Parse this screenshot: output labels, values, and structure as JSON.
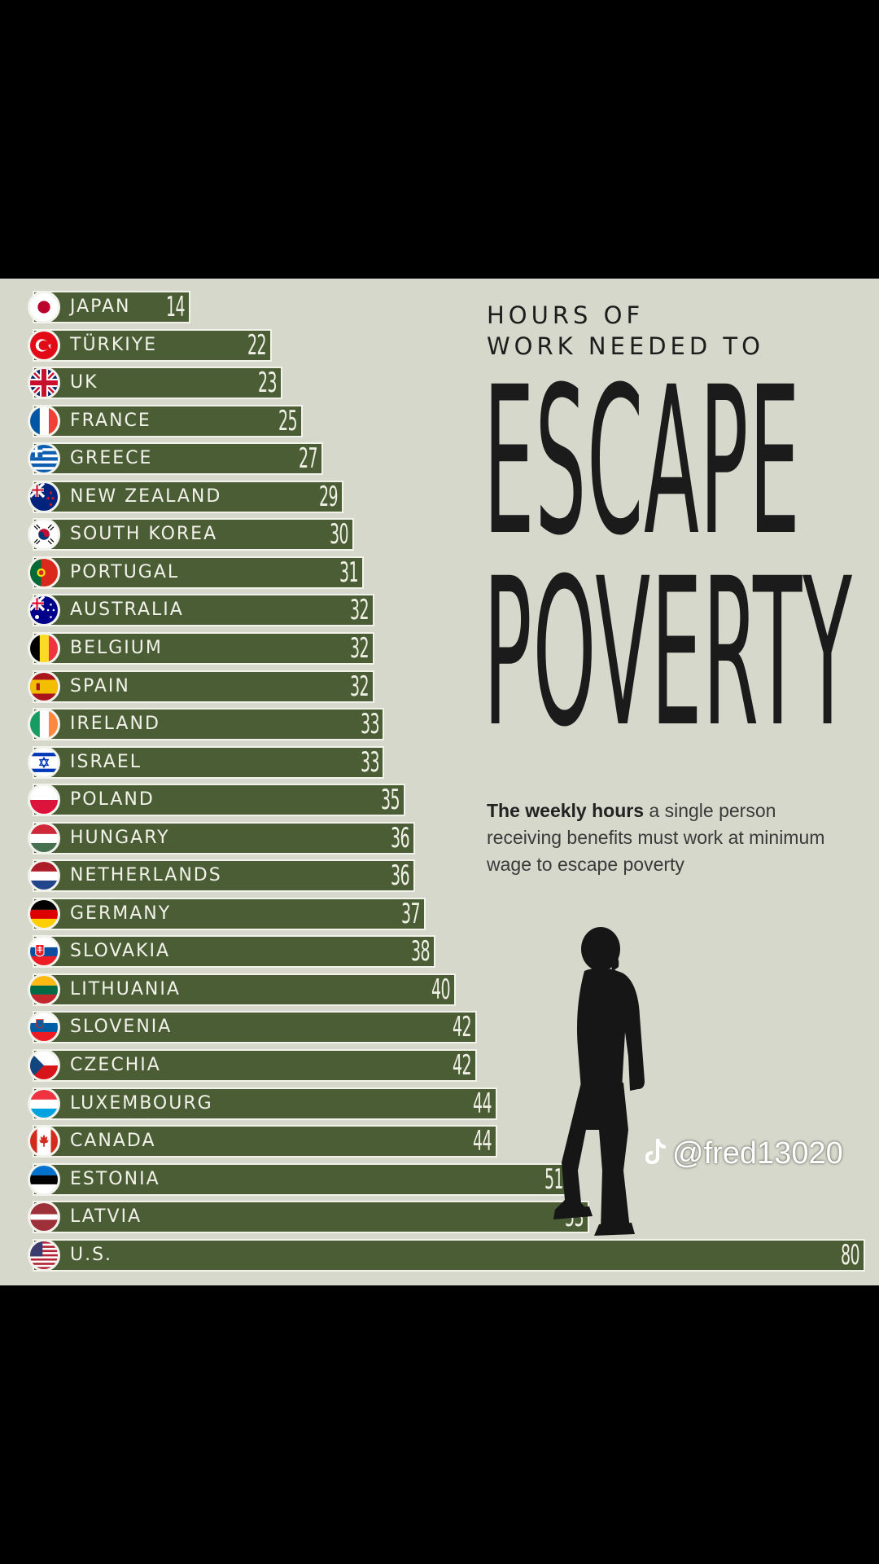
{
  "chart_data": {
    "type": "bar",
    "orientation": "horizontal",
    "title": "HOURS OF WORK NEEDED TO ESCAPE POVERTY",
    "subtitle_bold": "The weekly hours",
    "subtitle_rest": " a single person receiving benefits must work at minimum wage to escape poverty",
    "categories": [
      "JAPAN",
      "TÜRKIYE",
      "UK",
      "FRANCE",
      "GREECE",
      "NEW ZEALAND",
      "SOUTH KOREA",
      "PORTUGAL",
      "AUSTRALIA",
      "BELGIUM",
      "SPAIN",
      "IRELAND",
      "ISRAEL",
      "POLAND",
      "HUNGARY",
      "NETHERLANDS",
      "GERMANY",
      "SLOVAKIA",
      "LITHUANIA",
      "SLOVENIA",
      "CZECHIA",
      "LUXEMBOURG",
      "CANADA",
      "ESTONIA",
      "LATVIA",
      "U.S."
    ],
    "values": [
      14,
      22,
      23,
      25,
      27,
      29,
      30,
      31,
      32,
      32,
      32,
      33,
      33,
      35,
      36,
      36,
      37,
      38,
      40,
      42,
      42,
      44,
      44,
      51,
      53,
      80
    ],
    "flags": [
      "japan",
      "turkey",
      "uk",
      "france",
      "greece",
      "new-zealand",
      "south-korea",
      "portugal",
      "australia",
      "belgium",
      "spain",
      "ireland",
      "israel",
      "poland",
      "hungary",
      "netherlands",
      "germany",
      "slovakia",
      "lithuania",
      "slovenia",
      "czechia",
      "luxembourg",
      "canada",
      "estonia",
      "latvia",
      "usa"
    ],
    "xlabel": "",
    "ylabel": "",
    "bar_color": "#4a5d34",
    "background_color": "#d6d8cb"
  },
  "title_lines": [
    "HOURS OF",
    "WORK NEEDED TO"
  ],
  "title_big": [
    "ESCAPE",
    "POVERTY"
  ],
  "watermark": "@fred13020"
}
